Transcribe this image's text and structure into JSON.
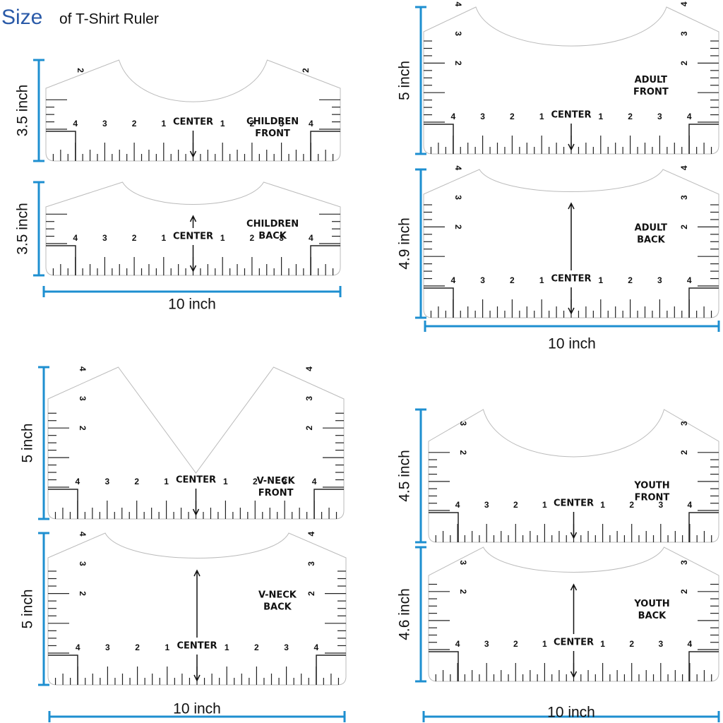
{
  "title": {
    "big": "Size",
    "rest": "of T-Shirt Ruler"
  },
  "rulers": [
    {
      "name": [
        "CHILDREN",
        "FRONT"
      ],
      "center": "CENTER",
      "height": "3.5 inch",
      "bottom_numbers": [
        4,
        3,
        2,
        1,
        1,
        2,
        3,
        4
      ],
      "side_left": [
        2
      ],
      "side_right": [
        2
      ]
    },
    {
      "name": [
        "CHILDREN",
        "BACK"
      ],
      "center": "CENTER",
      "height": "3.5 inch",
      "bottom_numbers": [
        4,
        3,
        2,
        1,
        1,
        2,
        3,
        4
      ],
      "side_left": [],
      "side_right": []
    },
    {
      "name": [
        "ADULT",
        "FRONT"
      ],
      "center": "CENTER",
      "height": "5 inch",
      "bottom_numbers": [
        4,
        3,
        2,
        1,
        1,
        2,
        3,
        4
      ],
      "side_left": [
        4,
        3,
        2
      ],
      "side_right": [
        4,
        3,
        2
      ]
    },
    {
      "name": [
        "ADULT",
        "BACK"
      ],
      "center": "CENTER",
      "height": "4.9 inch",
      "bottom_numbers": [
        4,
        3,
        2,
        1,
        1,
        2,
        3,
        4
      ],
      "side_left": [
        4,
        3,
        2
      ],
      "side_right": [
        4,
        3,
        2
      ]
    },
    {
      "name": [
        "V-NECK",
        "FRONT"
      ],
      "center": "CENTER",
      "height": "5 inch",
      "bottom_numbers": [
        4,
        3,
        2,
        1,
        1,
        2,
        3,
        4
      ],
      "side_left": [
        4,
        3,
        2
      ],
      "side_right": [
        4,
        3,
        2
      ]
    },
    {
      "name": [
        "V-NECK",
        "BACK"
      ],
      "center": "CENTER",
      "height": "5 inch",
      "bottom_numbers": [
        4,
        3,
        2,
        1,
        1,
        2,
        3,
        4
      ],
      "side_left": [
        4,
        3,
        2
      ],
      "side_right": [
        4,
        3,
        2
      ]
    },
    {
      "name": [
        "YOUTH",
        "FRONT"
      ],
      "center": "CENTER",
      "height": "4.5 inch",
      "bottom_numbers": [
        4,
        3,
        2,
        1,
        1,
        2,
        3,
        4
      ],
      "side_left": [
        3,
        2
      ],
      "side_right": [
        3,
        2
      ]
    },
    {
      "name": [
        "YOUTH",
        "BACK"
      ],
      "center": "CENTER",
      "height": "4.6 inch",
      "bottom_numbers": [
        4,
        3,
        2,
        1,
        1,
        2,
        3,
        4
      ],
      "side_left": [
        3,
        2
      ],
      "side_right": [
        3,
        2
      ]
    }
  ],
  "width_labels": [
    "10 inch",
    "10 inch",
    "10 inch",
    "10 inch"
  ]
}
